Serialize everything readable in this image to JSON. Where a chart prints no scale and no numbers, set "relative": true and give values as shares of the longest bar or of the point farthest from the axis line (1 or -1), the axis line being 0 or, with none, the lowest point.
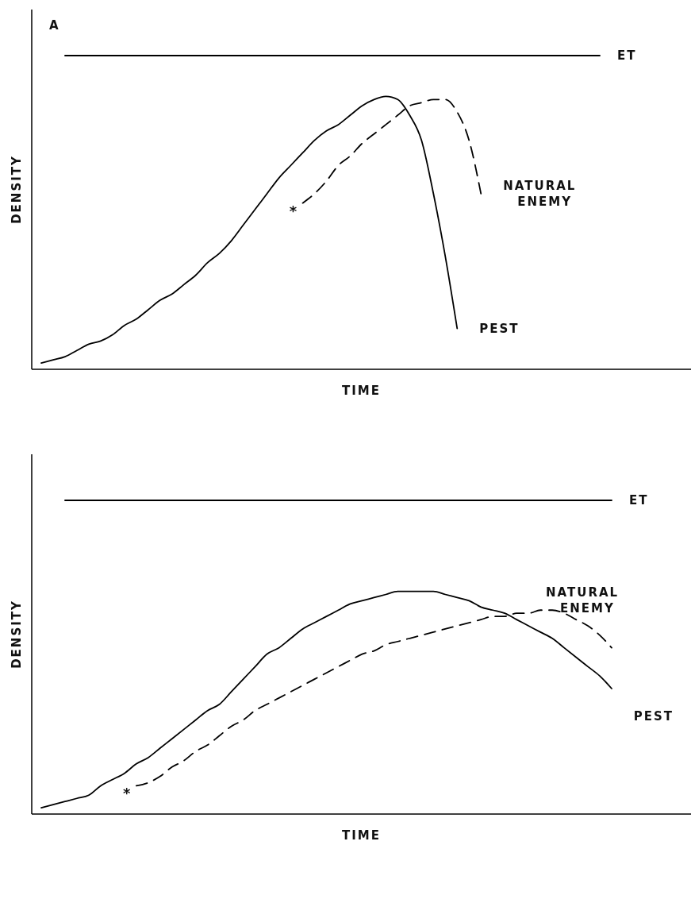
{
  "chart_data": [
    {
      "type": "line",
      "relative": true,
      "xlabel": "TIME",
      "ylabel": "DENSITY",
      "annotations": [
        "A",
        "*"
      ],
      "categories": [
        null,
        null,
        null,
        null,
        null,
        null,
        null,
        null,
        null,
        null,
        null,
        null,
        null,
        null,
        null,
        null,
        null,
        null,
        null,
        null,
        null,
        null,
        null,
        null,
        null,
        null,
        null,
        null,
        null,
        null,
        null,
        null,
        null,
        null,
        null,
        null,
        null,
        null,
        null,
        null,
        null,
        null,
        null,
        null,
        null,
        null,
        null,
        null,
        null
      ],
      "series": [
        {
          "name": "ET",
          "color": "#000000",
          "line_style": "solid",
          "values": [
            null,
            null,
            1,
            1,
            1,
            1,
            1,
            1,
            1,
            1,
            1,
            1,
            1,
            1,
            1,
            1,
            1,
            1,
            1,
            1,
            1,
            1,
            1,
            1,
            1,
            1,
            1,
            1,
            1,
            1,
            1,
            1,
            1,
            1,
            1,
            1,
            1,
            1,
            1,
            1,
            1,
            1,
            1,
            1,
            1,
            1,
            1,
            1,
            null
          ]
        },
        {
          "name": "PEST",
          "color": "#000000",
          "line_style": "solid",
          "values": [
            0.02,
            0.03,
            0.04,
            0.06,
            0.08,
            0.09,
            0.11,
            0.14,
            0.16,
            0.19,
            0.22,
            0.24,
            0.27,
            0.3,
            0.34,
            0.37,
            0.41,
            0.46,
            0.51,
            0.56,
            0.61,
            0.65,
            0.69,
            0.73,
            0.76,
            0.78,
            0.81,
            0.84,
            0.86,
            0.87,
            0.86,
            0.81,
            0.73,
            0.56,
            0.36,
            0.13,
            null,
            null,
            null,
            null,
            null,
            null,
            null,
            null,
            null,
            null,
            null,
            null,
            null
          ]
        },
        {
          "name": "NATURAL ENEMY",
          "color": "#000000",
          "line_style": "dashed",
          "values": [
            null,
            null,
            null,
            null,
            null,
            null,
            null,
            null,
            null,
            null,
            null,
            null,
            null,
            null,
            null,
            null,
            null,
            null,
            null,
            null,
            null,
            null,
            0.53,
            0.56,
            0.6,
            0.65,
            0.68,
            0.72,
            0.75,
            0.78,
            0.81,
            0.84,
            0.85,
            0.86,
            0.86,
            0.82,
            0.73,
            0.56,
            null,
            null,
            null,
            null,
            null,
            null,
            null,
            null,
            null,
            null,
            null
          ]
        }
      ]
    },
    {
      "type": "line",
      "relative": true,
      "xlabel": "TIME",
      "ylabel": "DENSITY",
      "annotations": [
        "*"
      ],
      "categories": [
        null,
        null,
        null,
        null,
        null,
        null,
        null,
        null,
        null,
        null,
        null,
        null,
        null,
        null,
        null,
        null,
        null,
        null,
        null,
        null,
        null,
        null,
        null,
        null,
        null,
        null,
        null,
        null,
        null,
        null,
        null,
        null,
        null,
        null,
        null,
        null,
        null,
        null,
        null,
        null,
        null,
        null,
        null,
        null,
        null,
        null,
        null,
        null,
        null
      ],
      "series": [
        {
          "name": "ET",
          "color": "#000000",
          "line_style": "solid",
          "values": [
            null,
            null,
            1,
            1,
            1,
            1,
            1,
            1,
            1,
            1,
            1,
            1,
            1,
            1,
            1,
            1,
            1,
            1,
            1,
            1,
            1,
            1,
            1,
            1,
            1,
            1,
            1,
            1,
            1,
            1,
            1,
            1,
            1,
            1,
            1,
            1,
            1,
            1,
            1,
            1,
            1,
            1,
            1,
            1,
            1,
            1,
            1,
            1,
            1
          ]
        },
        {
          "name": "PEST",
          "color": "#000000",
          "line_style": "solid",
          "values": [
            0.02,
            0.03,
            0.04,
            0.05,
            0.06,
            0.09,
            0.11,
            0.13,
            0.16,
            0.18,
            0.21,
            0.24,
            0.27,
            0.3,
            0.33,
            0.35,
            0.39,
            0.43,
            0.47,
            0.51,
            0.53,
            0.56,
            0.59,
            0.61,
            0.63,
            0.65,
            0.67,
            0.68,
            0.69,
            0.7,
            0.71,
            0.71,
            0.71,
            0.71,
            0.7,
            0.69,
            0.68,
            0.66,
            0.65,
            0.64,
            0.62,
            0.6,
            0.58,
            0.56,
            0.53,
            0.5,
            0.47,
            0.44,
            0.4
          ]
        },
        {
          "name": "NATURAL ENEMY",
          "color": "#000000",
          "line_style": "dashed",
          "values": [
            null,
            null,
            null,
            null,
            null,
            null,
            null,
            null,
            0.09,
            0.1,
            0.12,
            0.15,
            0.17,
            0.2,
            0.22,
            0.25,
            0.28,
            0.3,
            0.33,
            0.35,
            0.37,
            0.39,
            0.41,
            0.43,
            0.45,
            0.47,
            0.49,
            0.51,
            0.52,
            0.54,
            0.55,
            0.56,
            0.57,
            0.58,
            0.59,
            0.6,
            0.61,
            0.62,
            0.63,
            0.63,
            0.64,
            0.64,
            0.65,
            0.65,
            0.64,
            0.62,
            0.6,
            0.57,
            0.53
          ]
        }
      ]
    }
  ]
}
